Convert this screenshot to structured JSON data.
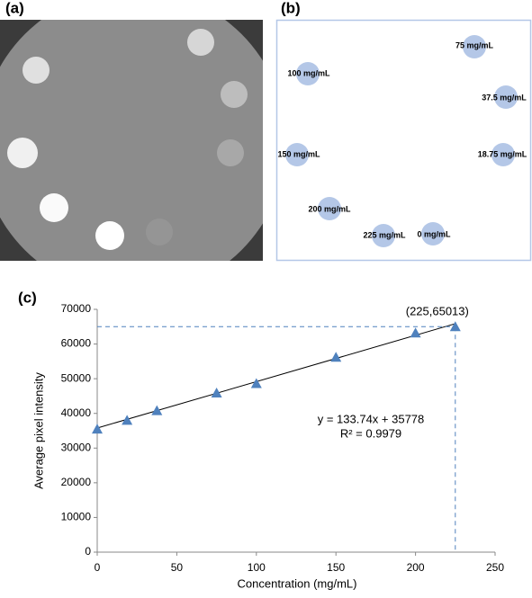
{
  "panel_labels": [
    "(a)",
    "(b)",
    "(c)"
  ],
  "diagram": {
    "labels": [
      "75 mg/mL",
      "100 mg/mL",
      "37.5 mg/mL",
      "150 mg/mL",
      "18.75 mg/mL",
      "200 mg/mL",
      "225 mg/mL",
      "0 mg/mL"
    ]
  },
  "chart_data": {
    "type": "scatter",
    "x_label": "Concentration (mg/mL)",
    "y_label": "Average pixel intensity",
    "x": [
      0,
      18.75,
      37.5,
      75,
      100,
      150,
      200,
      225
    ],
    "values": [
      35500,
      38000,
      40800,
      45900,
      48600,
      56200,
      63200,
      65013
    ],
    "color": "#4f81bd",
    "xlim": [
      0,
      250
    ],
    "xticks": [
      0,
      50,
      100,
      150,
      200,
      250
    ],
    "ylim": [
      0,
      70000
    ],
    "yticks": [
      0,
      10000,
      20000,
      30000,
      40000,
      50000,
      60000,
      70000
    ],
    "trendline": {
      "slope": 133.74,
      "intercept": 35778,
      "color": "#000000"
    },
    "annotations": [
      "y = 133.74x + 35778",
      "R² = 0.9979",
      "(225,65013)"
    ]
  }
}
